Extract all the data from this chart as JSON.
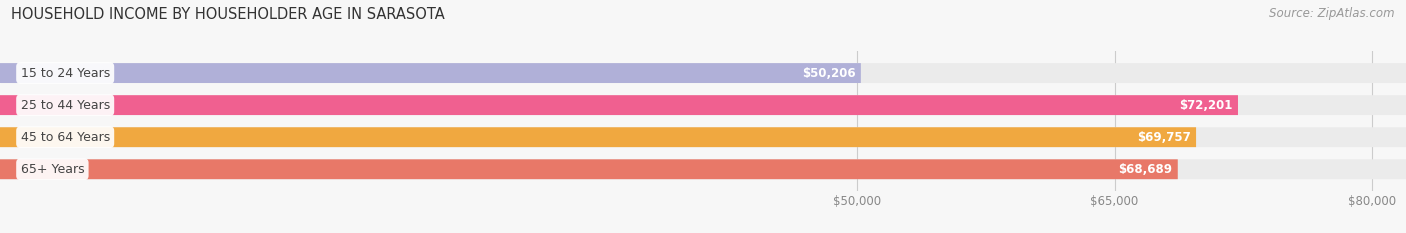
{
  "title": "HOUSEHOLD INCOME BY HOUSEHOLDER AGE IN SARASOTA",
  "source": "Source: ZipAtlas.com",
  "categories": [
    "15 to 24 Years",
    "25 to 44 Years",
    "45 to 64 Years",
    "65+ Years"
  ],
  "values": [
    50206,
    72201,
    69757,
    68689
  ],
  "bar_colors": [
    "#b0b0d8",
    "#f06090",
    "#f0a840",
    "#e87868"
  ],
  "bar_bg_color": "#ebebeb",
  "xmin": 0,
  "xmax": 82000,
  "xticks": [
    50000,
    65000,
    80000
  ],
  "xtick_labels": [
    "$50,000",
    "$65,000",
    "$80,000"
  ],
  "title_fontsize": 10.5,
  "source_fontsize": 8.5,
  "bar_label_fontsize": 8.5,
  "cat_label_fontsize": 9,
  "tick_fontsize": 8.5,
  "background_color": "#f7f7f7"
}
